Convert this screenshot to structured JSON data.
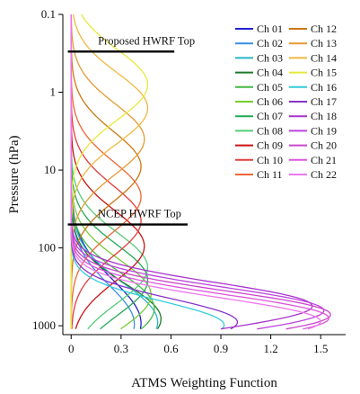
{
  "chart_data": {
    "type": "line",
    "title": "",
    "xlabel": "ATMS Weighting Function",
    "ylabel": "Pressure (hPa)",
    "xlim": [
      -0.05,
      1.65
    ],
    "ylim": [
      0.1,
      1300
    ],
    "y_scale": "log",
    "y_inverted": true,
    "x_ticks": [
      0,
      0.3,
      0.6,
      0.9,
      1.2,
      1.5
    ],
    "x_tick_labels": [
      "0",
      "0.3",
      "0.6",
      "0.9",
      "1.2",
      "1.5"
    ],
    "y_ticks": [
      0.1,
      1,
      10,
      100,
      1000
    ],
    "y_tick_labels": [
      "0.1",
      "1",
      "10",
      "100",
      "1000"
    ],
    "grid": false,
    "legend_position": "top-right",
    "annotations": [
      {
        "text": "Proposed HWRF Top",
        "pressure": 0.3,
        "x_from": -0.02,
        "x_to": 0.62
      },
      {
        "text": "NCEP HWRF Top",
        "pressure": 50,
        "x_from": -0.02,
        "x_to": 0.7
      }
    ],
    "series": [
      {
        "name": "Ch 01",
        "color": "#2222cc",
        "peak_x": 0.42,
        "peak_p": 930,
        "width": 0.55
      },
      {
        "name": "Ch 02",
        "color": "#3a8ee6",
        "peak_x": 0.38,
        "peak_p": 960,
        "width": 0.5
      },
      {
        "name": "Ch 03",
        "color": "#26b8c8",
        "peak_x": 0.52,
        "peak_p": 900,
        "width": 0.5
      },
      {
        "name": "Ch 04",
        "color": "#1d7a2a",
        "peak_x": 0.54,
        "peak_p": 820,
        "width": 0.45
      },
      {
        "name": "Ch 05",
        "color": "#44bb44",
        "peak_x": 0.5,
        "peak_p": 600,
        "width": 0.45
      },
      {
        "name": "Ch 06",
        "color": "#77cc33",
        "peak_x": 0.48,
        "peak_p": 400,
        "width": 0.45
      },
      {
        "name": "Ch 07",
        "color": "#22aa55",
        "peak_x": 0.46,
        "peak_p": 260,
        "width": 0.45
      },
      {
        "name": "Ch 08",
        "color": "#55cc77",
        "peak_x": 0.46,
        "peak_p": 180,
        "width": 0.45
      },
      {
        "name": "Ch 09",
        "color": "#cc1111",
        "peak_x": 0.44,
        "peak_p": 95,
        "width": 0.45
      },
      {
        "name": "Ch 10",
        "color": "#e23b3b",
        "peak_x": 0.42,
        "peak_p": 45,
        "width": 0.45
      },
      {
        "name": "Ch 11",
        "color": "#ee6633",
        "peak_x": 0.42,
        "peak_p": 22,
        "width": 0.45
      },
      {
        "name": "Ch 12",
        "color": "#cc7711",
        "peak_x": 0.42,
        "peak_p": 9,
        "width": 0.45
      },
      {
        "name": "Ch 13",
        "color": "#e69a33",
        "peak_x": 0.44,
        "peak_p": 4,
        "width": 0.45
      },
      {
        "name": "Ch 14",
        "color": "#f0b840",
        "peak_x": 0.46,
        "peak_p": 1.6,
        "width": 0.45
      },
      {
        "name": "Ch 15",
        "color": "#e8e83a",
        "peak_x": 0.46,
        "peak_p": 0.8,
        "width": 0.45
      },
      {
        "name": "Ch 16",
        "color": "#33ccdd",
        "peak_x": 0.92,
        "peak_p": 980,
        "width": 0.3
      },
      {
        "name": "Ch 17",
        "color": "#8833cc",
        "peak_x": 1.0,
        "peak_p": 900,
        "width": 0.3
      },
      {
        "name": "Ch 18",
        "color": "#aa33cc",
        "peak_x": 1.45,
        "peak_p": 560,
        "width": 0.3
      },
      {
        "name": "Ch 19",
        "color": "#bb44dd",
        "peak_x": 1.52,
        "peak_p": 640,
        "width": 0.3
      },
      {
        "name": "Ch 20",
        "color": "#cc44cc",
        "peak_x": 1.56,
        "peak_p": 720,
        "width": 0.3
      },
      {
        "name": "Ch 21",
        "color": "#dd55dd",
        "peak_x": 1.55,
        "peak_p": 800,
        "width": 0.3
      },
      {
        "name": "Ch 22",
        "color": "#ee77ee",
        "peak_x": 1.5,
        "peak_p": 880,
        "width": 0.3
      }
    ]
  }
}
